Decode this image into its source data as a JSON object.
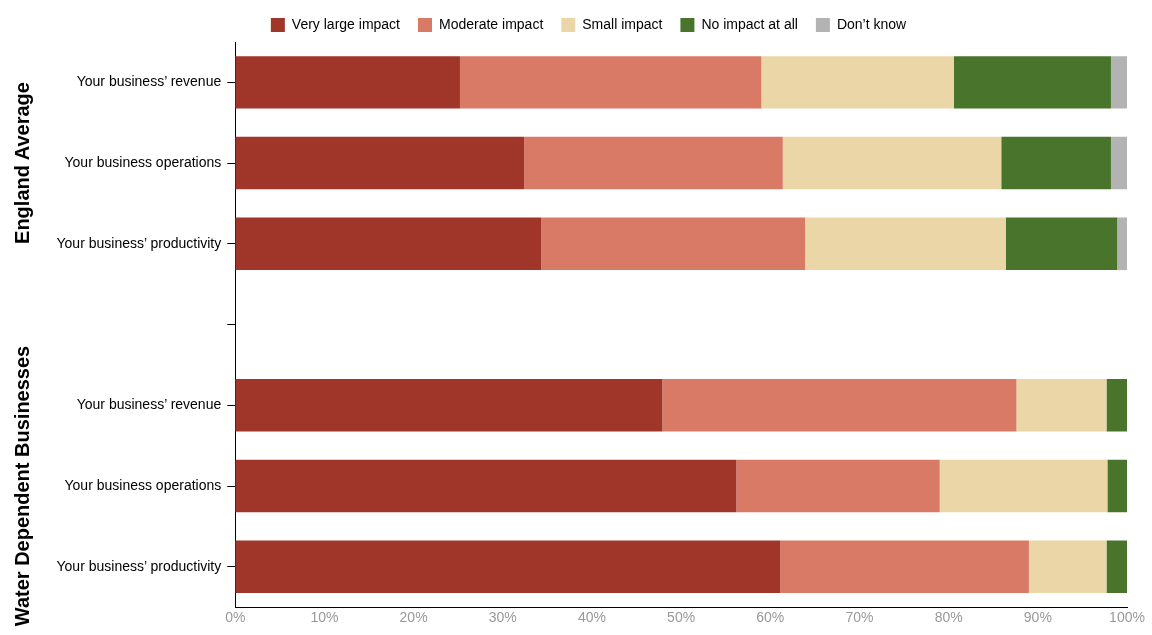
{
  "chart_data": {
    "type": "bar",
    "orientation": "horizontal",
    "stacked": true,
    "categories": [
      "Your business’ revenue",
      "Your business operations",
      "Your business’ productivity",
      null,
      "Your business’ revenue",
      "Your business operations",
      "Your business’ productivity"
    ],
    "series": [
      {
        "name": "Very large impact",
        "color": "#a0362a",
        "values": [
          25.2,
          32.4,
          34.3,
          null,
          47.9,
          56.2,
          61.1
        ]
      },
      {
        "name": "Moderate impact",
        "color": "#d97a66",
        "values": [
          33.8,
          29.0,
          29.6,
          null,
          39.7,
          22.8,
          27.9
        ]
      },
      {
        "name": "Small impact",
        "color": "#ebd6a8",
        "values": [
          21.6,
          24.5,
          22.5,
          null,
          10.1,
          18.8,
          8.7
        ]
      },
      {
        "name": "No impact at all",
        "color": "#48752b",
        "values": [
          17.6,
          12.3,
          12.5,
          null,
          2.3,
          2.2,
          2.3
        ]
      },
      {
        "name": "Don’t know",
        "color": "#b3b3b3",
        "values": [
          1.8,
          1.8,
          1.1,
          null,
          null,
          null,
          null
        ]
      }
    ],
    "xlim": [
      0,
      100
    ],
    "xticks": [
      {
        "value": 0,
        "label": "0%"
      },
      {
        "value": 10,
        "label": "10%"
      },
      {
        "value": 20,
        "label": "20%"
      },
      {
        "value": 30,
        "label": "30%"
      },
      {
        "value": 40,
        "label": "40%"
      },
      {
        "value": 50,
        "label": "50%"
      },
      {
        "value": 60,
        "label": "60%"
      },
      {
        "value": 70,
        "label": "70%"
      },
      {
        "value": 80,
        "label": "80%"
      },
      {
        "value": 90,
        "label": "90%"
      },
      {
        "value": 100,
        "label": "100%"
      }
    ],
    "annotations": [
      "England Average",
      "Water Dependent Businesses"
    ],
    "grid": false,
    "legend": "top"
  }
}
